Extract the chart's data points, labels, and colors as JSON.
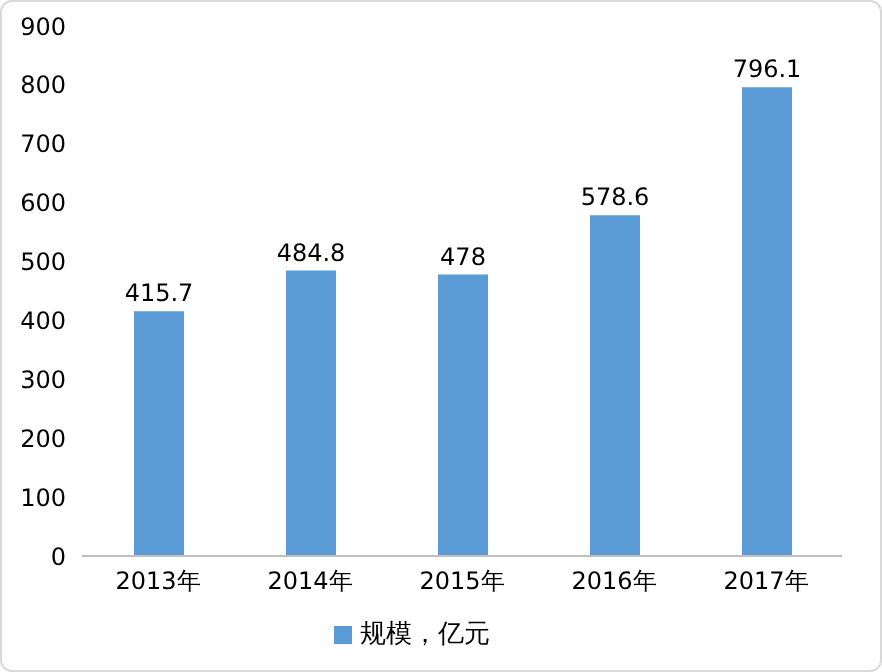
{
  "chart_data": {
    "type": "bar",
    "categories": [
      "2013年",
      "2014年",
      "2015年",
      "2016年",
      "2017年"
    ],
    "series": [
      {
        "name": "规模，亿元",
        "color": "#5b9bd5",
        "values": [
          415.7,
          484.8,
          478,
          578.6,
          796.1
        ]
      }
    ],
    "ylim": [
      0,
      900
    ],
    "yticks": [
      0,
      100,
      200,
      300,
      400,
      500,
      600,
      700,
      800,
      900
    ],
    "grid": false,
    "legend": "bottom",
    "data_labels": true
  }
}
